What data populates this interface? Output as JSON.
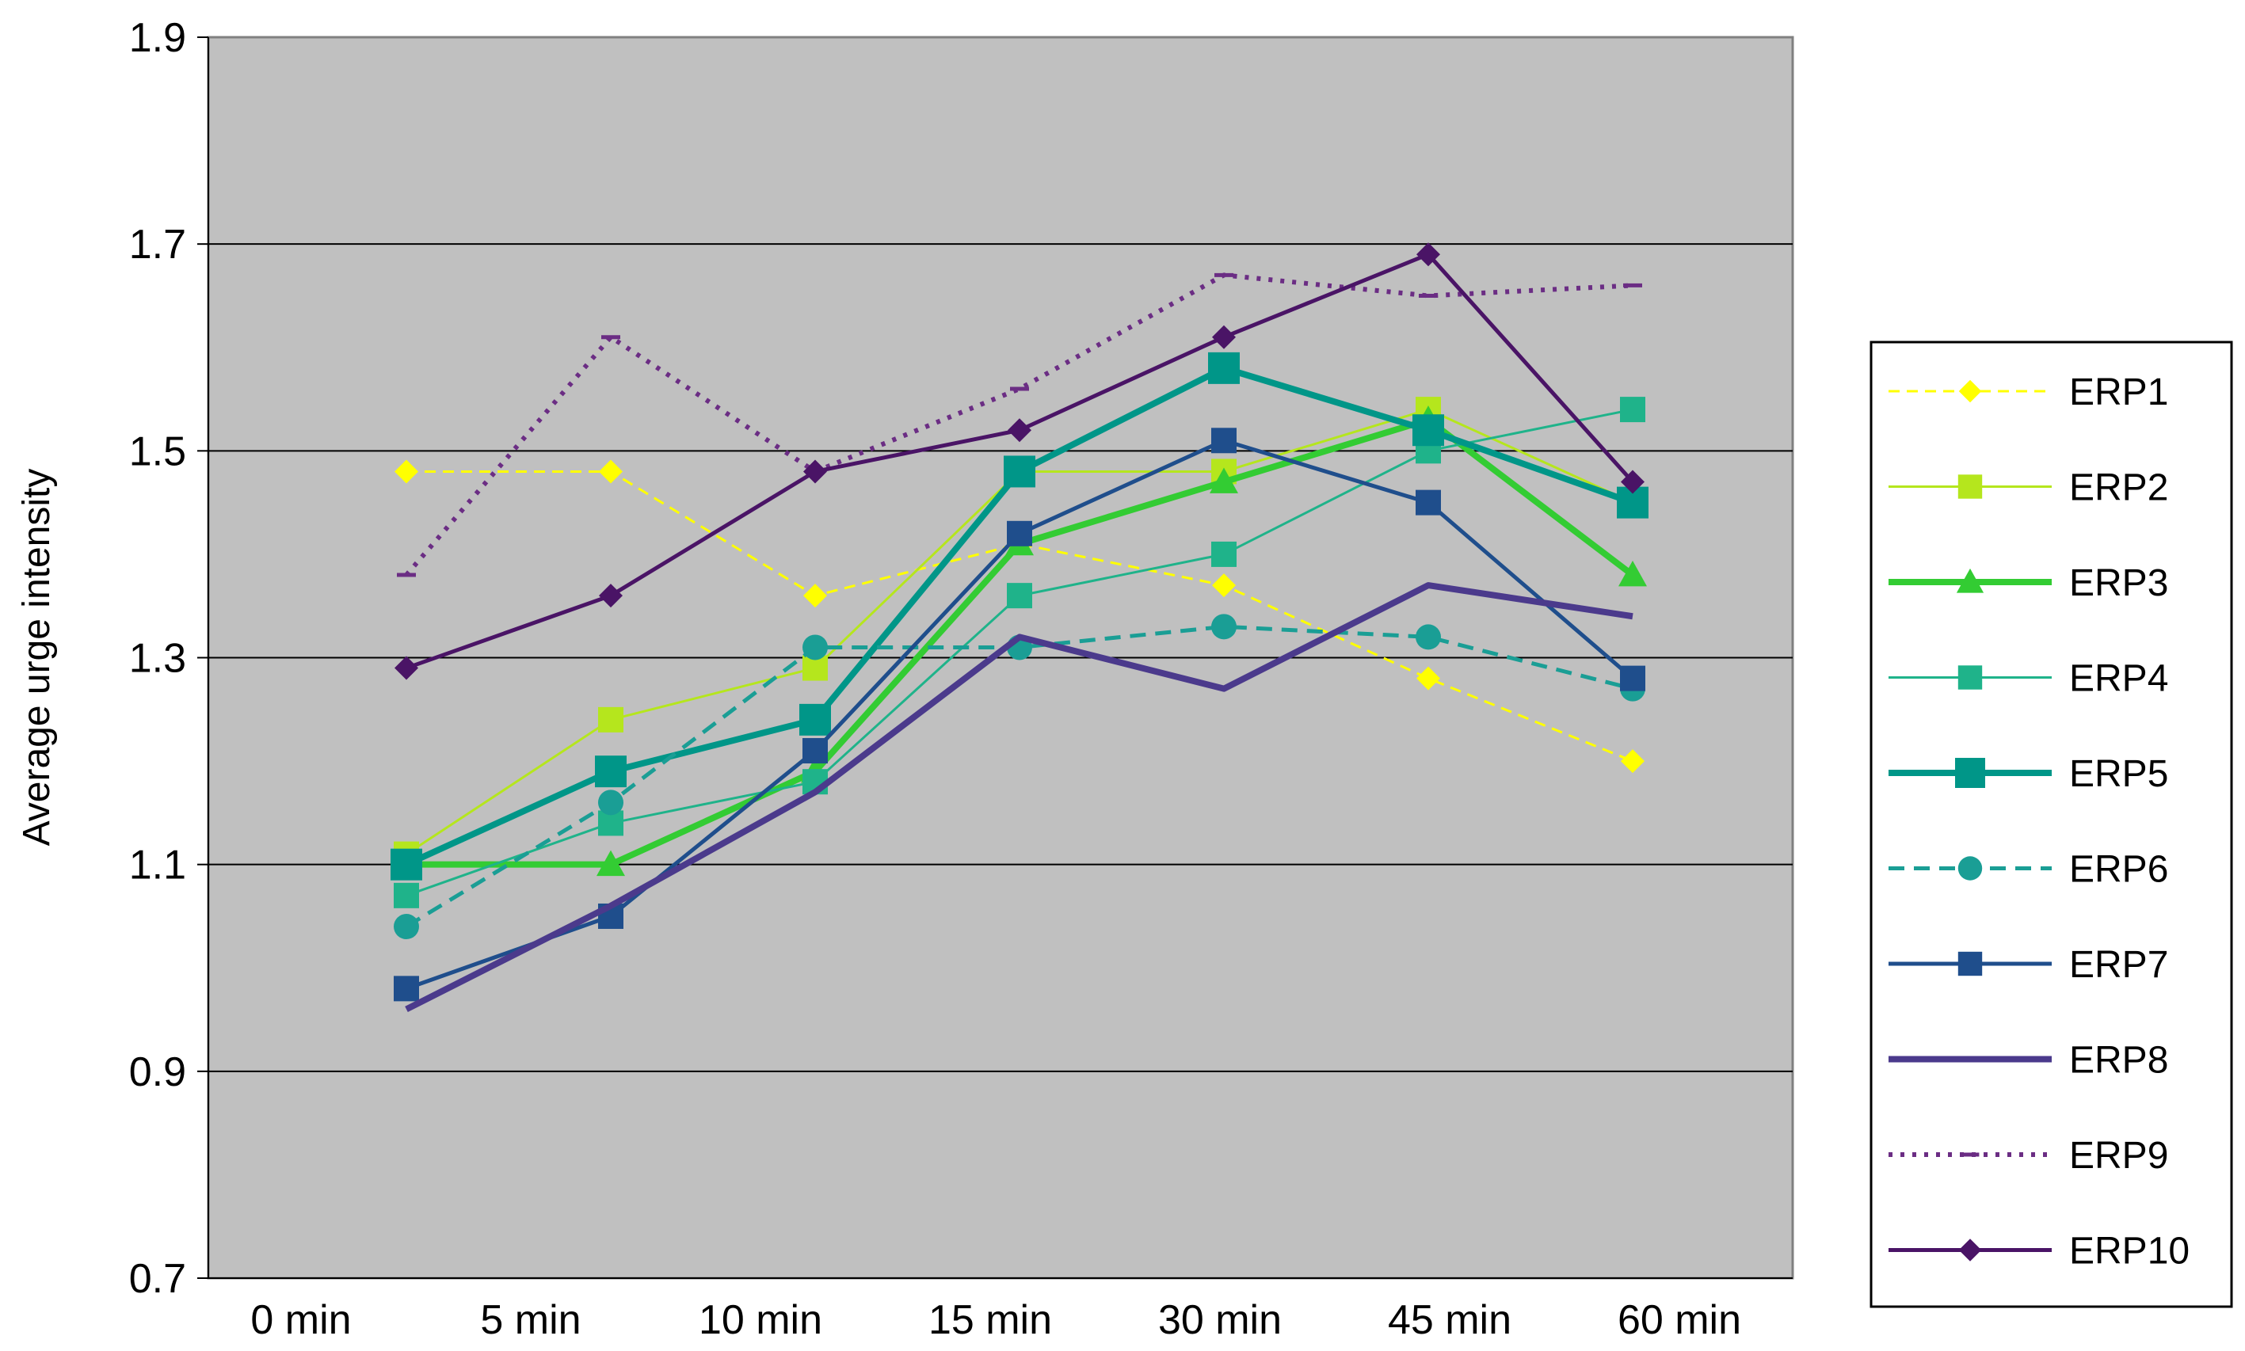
{
  "chart_data": {
    "type": "line",
    "title": "",
    "xlabel": "",
    "ylabel": "Average urge intensity",
    "categories": [
      "0 min",
      "5 min",
      "10 min",
      "15 min",
      "30 min",
      "45 min",
      "60 min"
    ],
    "ylim": [
      0.7,
      1.9
    ],
    "yticks": [
      "0.7",
      "0.9",
      "1.1",
      "1.3",
      "1.5",
      "1.7",
      "1.9"
    ],
    "grid": true,
    "plot_background": "#c0c0c0",
    "legend_position": "right",
    "series": [
      {
        "name": "ERP1",
        "values": [
          1.48,
          1.48,
          1.36,
          1.41,
          1.37,
          1.28,
          1.2
        ],
        "color": "#ffff00",
        "dash": "dashed",
        "marker": "diamond",
        "width": 3
      },
      {
        "name": "ERP2",
        "values": [
          1.11,
          1.24,
          1.29,
          1.48,
          1.48,
          1.54,
          1.45
        ],
        "color": "#b5e61d",
        "dash": "solid",
        "marker": "square",
        "width": 3
      },
      {
        "name": "ERP3",
        "values": [
          1.1,
          1.1,
          1.19,
          1.41,
          1.47,
          1.53,
          1.38
        ],
        "color": "#33cc33",
        "dash": "solid",
        "marker": "triangle",
        "width": 8
      },
      {
        "name": "ERP4",
        "values": [
          1.07,
          1.14,
          1.18,
          1.36,
          1.4,
          1.5,
          1.54
        ],
        "color": "#1fb38a",
        "dash": "solid",
        "marker": "square",
        "width": 3
      },
      {
        "name": "ERP5",
        "values": [
          1.1,
          1.19,
          1.24,
          1.48,
          1.58,
          1.52,
          1.45
        ],
        "color": "#009688",
        "dash": "solid",
        "marker": "square-large",
        "width": 8
      },
      {
        "name": "ERP6",
        "values": [
          1.04,
          1.16,
          1.31,
          1.31,
          1.33,
          1.32,
          1.27
        ],
        "color": "#1a9e95",
        "dash": "dashed",
        "marker": "circle",
        "width": 5
      },
      {
        "name": "ERP7",
        "values": [
          0.98,
          1.05,
          1.21,
          1.42,
          1.51,
          1.45,
          1.28
        ],
        "color": "#1f4e8c",
        "dash": "solid",
        "marker": "square",
        "width": 5
      },
      {
        "name": "ERP8",
        "values": [
          0.96,
          1.06,
          1.17,
          1.32,
          1.27,
          1.37,
          1.34
        ],
        "color": "#4b3a8c",
        "dash": "solid",
        "marker": "none",
        "width": 8
      },
      {
        "name": "ERP9",
        "values": [
          1.38,
          1.61,
          1.48,
          1.56,
          1.67,
          1.65,
          1.66
        ],
        "color": "#6b2d84",
        "dash": "dotted",
        "marker": "dash",
        "width": 6
      },
      {
        "name": "ERP10",
        "values": [
          1.29,
          1.36,
          1.48,
          1.52,
          1.61,
          1.69,
          1.47
        ],
        "color": "#4a1466",
        "dash": "solid",
        "marker": "diamond",
        "width": 5
      }
    ]
  }
}
